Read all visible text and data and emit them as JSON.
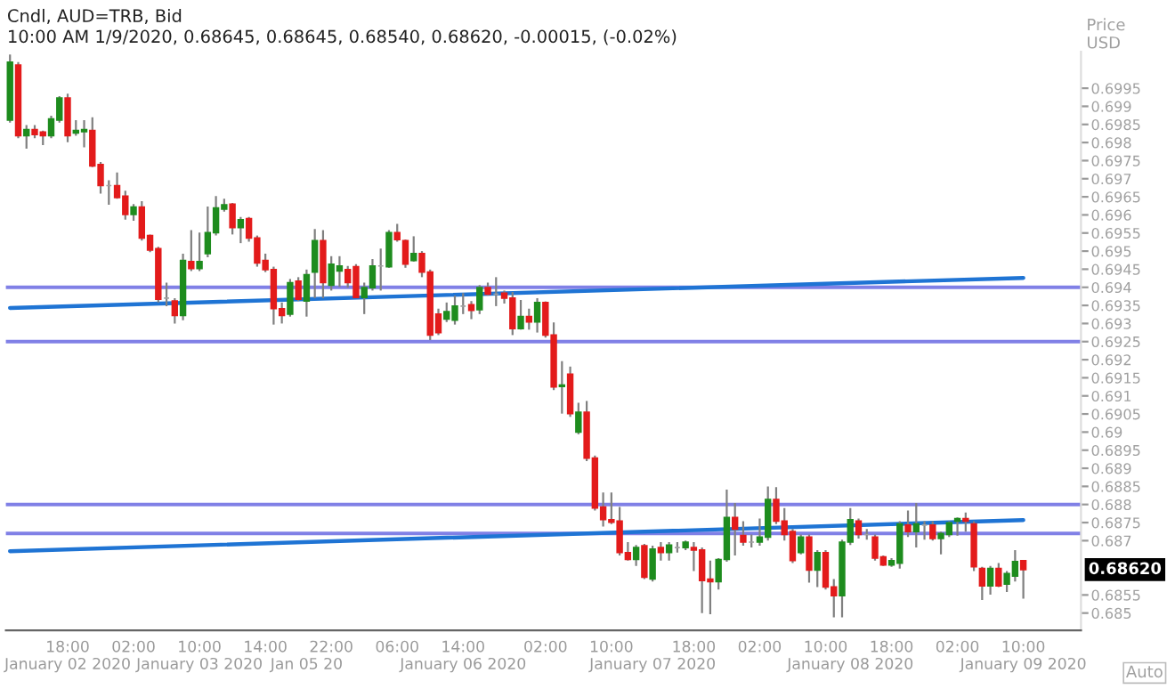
{
  "chart_data": {
    "type": "candlestick",
    "title": "Cndl, AUD=TRB, Bid",
    "subtitle": "10:00 AM 1/9/2020, 0.68645, 0.68645, 0.68540, 0.68620, -0.00015, (-0.02%)",
    "ylabel": "Price\nUSD",
    "categories": [
      null,
      null,
      null,
      null,
      null,
      null,
      null,
      "18:00\nJanuary 02 2020",
      null,
      null,
      null,
      null,
      null,
      null,
      null,
      "02:00",
      null,
      null,
      null,
      null,
      null,
      null,
      null,
      "10:00\nJanuary 03 2020",
      null,
      null,
      null,
      null,
      null,
      null,
      null,
      "14:00",
      null,
      null,
      null,
      null,
      "\nJan 05 20",
      null,
      null,
      "22:00",
      null,
      null,
      null,
      null,
      null,
      null,
      null,
      "06:00",
      null,
      null,
      null,
      null,
      null,
      null,
      null,
      "14:00\nJanuary 06 2020",
      null,
      null,
      null,
      null,
      null,
      null,
      null,
      null,
      null,
      "02:00",
      null,
      null,
      null,
      null,
      null,
      null,
      null,
      "10:00",
      null,
      null,
      null,
      null,
      "\nJanuary 07 2020",
      null,
      null,
      null,
      null,
      "18:00",
      null,
      null,
      null,
      null,
      null,
      null,
      null,
      "02:00",
      null,
      null,
      null,
      null,
      null,
      null,
      null,
      "10:00",
      null,
      null,
      "\nJanuary 08 2020",
      null,
      null,
      null,
      null,
      "18:00",
      null,
      null,
      null,
      null,
      null,
      null,
      null,
      "02:00",
      null,
      null,
      null,
      null,
      null,
      null,
      null,
      "10:00\nJanuary 09 2020"
    ],
    "ohlc": [
      [
        0.69862,
        0.70043,
        0.69855,
        0.70022
      ],
      [
        0.70014,
        0.70022,
        0.69812,
        0.69819
      ],
      [
        0.69819,
        0.69848,
        0.69783,
        0.69836
      ],
      [
        0.69836,
        0.69848,
        0.69812,
        0.69822
      ],
      [
        0.69829,
        0.69833,
        0.69793,
        0.69819
      ],
      [
        0.69819,
        0.69874,
        0.69812,
        0.69865
      ],
      [
        0.69862,
        0.69928,
        0.69855,
        0.69923
      ],
      [
        0.69923,
        0.69935,
        0.69801,
        0.69819
      ],
      [
        0.69826,
        0.69862,
        0.69819,
        0.69833
      ],
      [
        0.6983,
        0.69862,
        0.69787,
        0.69836
      ],
      [
        0.69833,
        0.6987,
        0.69732,
        0.69735
      ],
      [
        0.69739,
        0.69746,
        0.69659,
        0.69681
      ],
      [
        0.69681,
        0.69696,
        0.69628,
        0.69681
      ],
      [
        0.69681,
        0.69717,
        0.69645,
        0.69648
      ],
      [
        0.69652,
        0.69667,
        0.69587,
        0.69601
      ],
      [
        0.69601,
        0.6963,
        0.69584,
        0.69622
      ],
      [
        0.69622,
        0.69638,
        0.69529,
        0.69536
      ],
      [
        0.69543,
        0.69546,
        0.69497,
        0.69503
      ],
      [
        0.69507,
        0.69512,
        0.69358,
        0.69367
      ],
      [
        0.6937,
        0.69413,
        0.69348,
        0.6937
      ],
      [
        0.69362,
        0.6937,
        0.693,
        0.69322
      ],
      [
        0.69322,
        0.69493,
        0.69309,
        0.69474
      ],
      [
        0.69471,
        0.69558,
        0.69445,
        0.69452
      ],
      [
        0.69452,
        0.69551,
        0.69445,
        0.69471
      ],
      [
        0.69493,
        0.69623,
        0.69483,
        0.69551
      ],
      [
        0.69551,
        0.69652,
        0.69543,
        0.69619
      ],
      [
        0.69616,
        0.69645,
        0.69609,
        0.69628
      ],
      [
        0.6963,
        0.69633,
        0.69546,
        0.69565
      ],
      [
        0.69565,
        0.69594,
        0.69522,
        0.69587
      ],
      [
        0.6959,
        0.69594,
        0.69526,
        0.69536
      ],
      [
        0.69536,
        0.69543,
        0.69457,
        0.69467
      ],
      [
        0.69474,
        0.69493,
        0.69442,
        0.69449
      ],
      [
        0.69449,
        0.69457,
        0.69297,
        0.69341
      ],
      [
        0.69341,
        0.69358,
        0.693,
        0.69322
      ],
      [
        0.69326,
        0.69423,
        0.69319,
        0.69413
      ],
      [
        0.69417,
        0.69428,
        0.69362,
        0.69367
      ],
      [
        0.69362,
        0.69449,
        0.69319,
        0.69435
      ],
      [
        0.69442,
        0.69561,
        0.6937,
        0.69529
      ],
      [
        0.69529,
        0.69558,
        0.6937,
        0.69413
      ],
      [
        0.69406,
        0.69486,
        0.69391,
        0.69464
      ],
      [
        0.69445,
        0.69486,
        0.69401,
        0.69459
      ],
      [
        0.69449,
        0.69459,
        0.69399,
        0.69413
      ],
      [
        0.69457,
        0.69464,
        0.6937,
        0.69372
      ],
      [
        0.69372,
        0.69413,
        0.69326,
        0.69399
      ],
      [
        0.69399,
        0.69478,
        0.69391,
        0.69459
      ],
      [
        0.69459,
        0.69507,
        0.69391,
        0.69459
      ],
      [
        0.69457,
        0.69558,
        0.69454,
        0.69551
      ],
      [
        0.69551,
        0.69575,
        0.69526,
        0.69532
      ],
      [
        0.69529,
        0.69532,
        0.69454,
        0.69464
      ],
      [
        0.69474,
        0.69541,
        0.69471,
        0.69493
      ],
      [
        0.69493,
        0.695,
        0.69428,
        0.69442
      ],
      [
        0.69442,
        0.69449,
        0.69254,
        0.69268
      ],
      [
        0.69326,
        0.69341,
        0.69268,
        0.69275
      ],
      [
        0.69312,
        0.69358,
        0.69304,
        0.69333
      ],
      [
        0.69309,
        0.69377,
        0.69297,
        0.69348
      ],
      [
        0.69348,
        0.69384,
        0.69326,
        0.69348
      ],
      [
        0.69352,
        0.69362,
        0.69312,
        0.69336
      ],
      [
        0.69338,
        0.69406,
        0.69326,
        0.69399
      ],
      [
        0.69399,
        0.69413,
        0.69377,
        0.69381
      ],
      [
        0.69381,
        0.69428,
        0.69348,
        0.69381
      ],
      [
        0.69384,
        0.69391,
        0.69355,
        0.6937
      ],
      [
        0.6937,
        0.69387,
        0.69268,
        0.69286
      ],
      [
        0.69286,
        0.69365,
        0.69283,
        0.69319
      ],
      [
        0.69319,
        0.69341,
        0.69283,
        0.69304
      ],
      [
        0.69304,
        0.6937,
        0.69275,
        0.69358
      ],
      [
        0.69358,
        0.69361,
        0.69261,
        0.69268
      ],
      [
        0.69268,
        0.69303,
        0.69116,
        0.69125
      ],
      [
        0.69126,
        0.69196,
        0.69051,
        0.6913
      ],
      [
        0.6916,
        0.69181,
        0.69042,
        0.69051
      ],
      [
        0.69,
        0.69081,
        0.68994,
        0.69055
      ],
      [
        0.69055,
        0.69086,
        0.6892,
        0.68928
      ],
      [
        0.68928,
        0.68935,
        0.68783,
        0.6879
      ],
      [
        0.68793,
        0.68833,
        0.68739,
        0.68758
      ],
      [
        0.68758,
        0.68833,
        0.68746,
        0.68751
      ],
      [
        0.68754,
        0.68793,
        0.68659,
        0.68667
      ],
      [
        0.68667,
        0.68696,
        0.68645,
        0.68648
      ],
      [
        0.68648,
        0.68688,
        0.6863,
        0.68681
      ],
      [
        0.68686,
        0.68691,
        0.68594,
        0.68599
      ],
      [
        0.68594,
        0.68686,
        0.68587,
        0.68677
      ],
      [
        0.68681,
        0.68696,
        0.68645,
        0.68667
      ],
      [
        0.68667,
        0.68696,
        0.68645,
        0.68688
      ],
      [
        0.68681,
        0.68696,
        0.68667,
        0.68681
      ],
      [
        0.68681,
        0.687,
        0.68674,
        0.68696
      ],
      [
        0.68681,
        0.68696,
        0.68616,
        0.68674
      ],
      [
        0.68674,
        0.68681,
        0.685,
        0.6859
      ],
      [
        0.68594,
        0.68645,
        0.68497,
        0.68587
      ],
      [
        0.68587,
        0.68652,
        0.68565,
        0.68648
      ],
      [
        0.68648,
        0.68841,
        0.68642,
        0.68764
      ],
      [
        0.68764,
        0.68804,
        0.68659,
        0.68732
      ],
      [
        0.68714,
        0.68754,
        0.68686,
        0.68696
      ],
      [
        0.68696,
        0.68717,
        0.68681,
        0.68696
      ],
      [
        0.68696,
        0.68761,
        0.68686,
        0.6871
      ],
      [
        0.6871,
        0.6885,
        0.687,
        0.68814
      ],
      [
        0.68814,
        0.68848,
        0.68746,
        0.68754
      ],
      [
        0.68754,
        0.6879,
        0.687,
        0.68717
      ],
      [
        0.68725,
        0.68732,
        0.68638,
        0.68645
      ],
      [
        0.68667,
        0.68717,
        0.68662,
        0.6871
      ],
      [
        0.6871,
        0.68717,
        0.68584,
        0.68619
      ],
      [
        0.68619,
        0.68674,
        0.68572,
        0.68667
      ],
      [
        0.68667,
        0.68674,
        0.68565,
        0.68572
      ],
      [
        0.68572,
        0.68594,
        0.68488,
        0.68548
      ],
      [
        0.68548,
        0.68703,
        0.68488,
        0.68696
      ],
      [
        0.68696,
        0.6879,
        0.68688,
        0.68758
      ],
      [
        0.68754,
        0.68761,
        0.68706,
        0.68717
      ],
      [
        0.68717,
        0.68732,
        0.68703,
        0.68717
      ],
      [
        0.6871,
        0.68717,
        0.68645,
        0.68652
      ],
      [
        0.68655,
        0.68659,
        0.6863,
        0.68633
      ],
      [
        0.68633,
        0.68652,
        0.68628,
        0.68645
      ],
      [
        0.68638,
        0.68754,
        0.68623,
        0.68746
      ],
      [
        0.68743,
        0.68783,
        0.6871,
        0.68725
      ],
      [
        0.68725,
        0.68804,
        0.68681,
        0.68746
      ],
      [
        0.68743,
        0.68754,
        0.68703,
        0.68743
      ],
      [
        0.68743,
        0.68754,
        0.687,
        0.68706
      ],
      [
        0.68706,
        0.68725,
        0.68662,
        0.6872
      ],
      [
        0.68717,
        0.68754,
        0.6871,
        0.68749
      ],
      [
        0.68754,
        0.68764,
        0.68714,
        0.68761
      ],
      [
        0.68761,
        0.68778,
        0.68725,
        0.68754
      ],
      [
        0.68746,
        0.68754,
        0.68616,
        0.68628
      ],
      [
        0.68623,
        0.68628,
        0.68536,
        0.68575
      ],
      [
        0.68575,
        0.6863,
        0.68551,
        0.68623
      ],
      [
        0.68623,
        0.68638,
        0.68572,
        0.68575
      ],
      [
        0.6858,
        0.68616,
        0.68558,
        0.68609
      ],
      [
        0.68602,
        0.68674,
        0.68587,
        0.68642
      ],
      [
        0.68645,
        0.68645,
        0.6854,
        0.6862
      ]
    ],
    "colors": [
      "#1e8c1e",
      "#e31b1b",
      "#1e8c1e",
      "#e31b1b",
      "#e31b1b",
      "#1e8c1e",
      "#1e8c1e",
      "#e31b1b",
      "#1e8c1e",
      "#1e8c1e",
      "#e31b1b",
      "#e31b1b",
      "#a0a0a0",
      "#e31b1b",
      "#e31b1b",
      "#1e8c1e",
      "#e31b1b",
      "#e31b1b",
      "#e31b1b",
      "#a0a0a0",
      "#e31b1b",
      "#1e8c1e",
      "#e31b1b",
      "#1e8c1e",
      "#1e8c1e",
      "#1e8c1e",
      "#1e8c1e",
      "#e31b1b",
      "#1e8c1e",
      "#e31b1b",
      "#e31b1b",
      "#e31b1b",
      "#e31b1b",
      "#e31b1b",
      "#1e8c1e",
      "#e31b1b",
      "#1e8c1e",
      "#1e8c1e",
      "#e31b1b",
      "#1e8c1e",
      "#1e8c1e",
      "#e31b1b",
      "#e31b1b",
      "#1e8c1e",
      "#1e8c1e",
      "#a0a0a0",
      "#1e8c1e",
      "#e31b1b",
      "#e31b1b",
      "#1e8c1e",
      "#e31b1b",
      "#e31b1b",
      "#e31b1b",
      "#1e8c1e",
      "#1e8c1e",
      "#a0a0a0",
      "#e31b1b",
      "#1e8c1e",
      "#e31b1b",
      "#a0a0a0",
      "#e31b1b",
      "#e31b1b",
      "#1e8c1e",
      "#e31b1b",
      "#1e8c1e",
      "#e31b1b",
      "#e31b1b",
      "#1e8c1e",
      "#e31b1b",
      "#1e8c1e",
      "#e31b1b",
      "#e31b1b",
      "#e31b1b",
      "#e31b1b",
      "#e31b1b",
      "#e31b1b",
      "#1e8c1e",
      "#e31b1b",
      "#1e8c1e",
      "#e31b1b",
      "#1e8c1e",
      "#a0a0a0",
      "#1e8c1e",
      "#e31b1b",
      "#e31b1b",
      "#e31b1b",
      "#1e8c1e",
      "#1e8c1e",
      "#e31b1b",
      "#e31b1b",
      "#a0a0a0",
      "#1e8c1e",
      "#1e8c1e",
      "#e31b1b",
      "#e31b1b",
      "#e31b1b",
      "#1e8c1e",
      "#e31b1b",
      "#1e8c1e",
      "#e31b1b",
      "#e31b1b",
      "#1e8c1e",
      "#1e8c1e",
      "#e31b1b",
      "#a0a0a0",
      "#e31b1b",
      "#e31b1b",
      "#1e8c1e",
      "#1e8c1e",
      "#e31b1b",
      "#1e8c1e",
      "#a0a0a0",
      "#e31b1b",
      "#1e8c1e",
      "#1e8c1e",
      "#1e8c1e",
      "#e31b1b",
      "#e31b1b",
      "#e31b1b",
      "#1e8c1e",
      "#e31b1b",
      "#1e8c1e",
      "#1e8c1e",
      "#e31b1b"
    ],
    "series": [
      {
        "type": "line",
        "color": "#1f74d4",
        "values": [
          0.69343,
          null,
          null,
          null,
          null,
          null,
          null,
          null,
          null,
          null,
          null,
          null,
          null,
          null,
          null,
          null,
          null,
          null,
          null,
          null,
          null,
          null,
          null,
          null,
          null,
          null,
          null,
          null,
          null,
          null,
          null,
          null,
          null,
          null,
          null,
          null,
          null,
          null,
          null,
          null,
          null,
          null,
          null,
          null,
          null,
          null,
          null,
          null,
          null,
          null,
          null,
          null,
          null,
          null,
          null,
          null,
          null,
          null,
          null,
          null,
          null,
          null,
          null,
          null,
          null,
          null,
          null,
          null,
          null,
          null,
          null,
          null,
          null,
          null,
          null,
          null,
          null,
          null,
          null,
          null,
          null,
          null,
          null,
          null,
          null,
          null,
          null,
          null,
          null,
          null,
          null,
          null,
          null,
          null,
          null,
          null,
          null,
          null,
          null,
          null,
          null,
          null,
          null,
          null,
          null,
          null,
          null,
          null,
          null,
          null,
          null,
          null,
          null,
          null,
          null,
          null,
          null,
          null,
          null,
          null,
          null,
          null,
          null,
          0.69426
        ]
      },
      {
        "type": "line",
        "color": "#1f74d4",
        "values": [
          0.68671,
          null,
          null,
          null,
          null,
          null,
          null,
          null,
          null,
          null,
          null,
          null,
          null,
          null,
          null,
          null,
          null,
          null,
          null,
          null,
          null,
          null,
          null,
          null,
          null,
          null,
          null,
          null,
          null,
          null,
          null,
          null,
          null,
          null,
          null,
          null,
          null,
          null,
          null,
          null,
          null,
          null,
          null,
          null,
          null,
          null,
          null,
          null,
          null,
          null,
          null,
          null,
          null,
          null,
          null,
          null,
          null,
          null,
          null,
          null,
          null,
          null,
          null,
          null,
          null,
          null,
          null,
          null,
          null,
          null,
          null,
          null,
          null,
          null,
          null,
          null,
          null,
          null,
          null,
          null,
          null,
          null,
          null,
          null,
          null,
          null,
          null,
          null,
          null,
          null,
          null,
          null,
          null,
          null,
          null,
          null,
          null,
          null,
          null,
          null,
          null,
          null,
          null,
          null,
          null,
          null,
          null,
          null,
          null,
          null,
          null,
          null,
          null,
          null,
          null,
          null,
          null,
          null,
          null,
          null,
          null,
          null,
          null,
          0.68757
        ]
      }
    ],
    "ref_lines": [
      {
        "axis": "y",
        "value": 0.694,
        "color": "#8080e6"
      },
      {
        "axis": "y",
        "value": 0.6925,
        "color": "#8080e6"
      },
      {
        "axis": "y",
        "value": 0.688,
        "color": "#8080e6"
      },
      {
        "axis": "y",
        "value": 0.6872,
        "color": "#8080e6"
      }
    ],
    "ylim": [
      0.68452,
      0.70051
    ],
    "yticks": [
      0.685,
      0.6855,
      0.687,
      0.6875,
      0.688,
      0.6885,
      0.689,
      0.6895,
      0.69,
      0.6905,
      0.691,
      0.6915,
      0.692,
      0.6925,
      0.693,
      0.6935,
      0.694,
      0.6945,
      0.695,
      0.6955,
      0.696,
      0.6965,
      0.697,
      0.6975,
      0.698,
      0.6985,
      0.699,
      0.6995
    ],
    "annotations": [
      "0.68620",
      "Auto"
    ],
    "grid": false,
    "legend": false
  }
}
